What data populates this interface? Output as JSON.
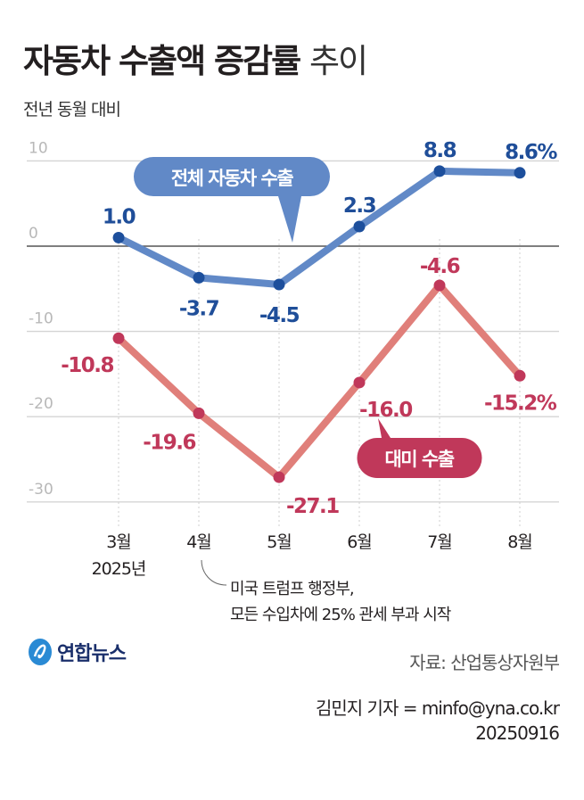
{
  "title": {
    "bold": "자동차 수출액 증감률",
    "light": "추이"
  },
  "subtitle": "전년 동월 대비",
  "chart_data": {
    "type": "line",
    "title": "자동차 수출액 증감률 추이",
    "subtitle": "전년 동월 대비",
    "categories": [
      "3월",
      "4월",
      "5월",
      "6월",
      "7월",
      "8월"
    ],
    "year_label": "2025년",
    "ylim": [
      -30,
      10
    ],
    "yticks": [
      "10",
      "0",
      "-10",
      "-20",
      "-30"
    ],
    "ytick_values": [
      10,
      0,
      -10,
      -20,
      -30
    ],
    "grid": true,
    "series": [
      {
        "name": "전체 자동차 수출",
        "values": [
          1.0,
          -3.7,
          -4.5,
          2.3,
          8.8,
          8.6
        ],
        "labels": [
          "1.0",
          "-3.7",
          "-4.5",
          "2.3",
          "8.8",
          "8.6%"
        ],
        "line_color": "#6189c7",
        "dot_color": "#1d4f9c",
        "label_color": "#1f4e99"
      },
      {
        "name": "대미 수출",
        "values": [
          -10.8,
          -19.6,
          -27.1,
          -16.0,
          -4.6,
          -15.2
        ],
        "labels": [
          "-10.8",
          "-19.6",
          "-27.1",
          "-16.0",
          "-4.6",
          "-15.2%"
        ],
        "line_color": "#e07f7a",
        "dot_color": "#c0385a",
        "label_color": "#c0385a"
      }
    ],
    "annotation": {
      "lines": [
        "미국 트럼프 행정부,",
        "모든 수입차에 25% 관세 부과 시작"
      ],
      "category": "4월"
    }
  },
  "logo_text": "연합뉴스",
  "source": "자료: 산업통상자원부",
  "credit": {
    "reporter": "김민지 기자 = minfo@yna.co.kr",
    "date": "20250916"
  }
}
